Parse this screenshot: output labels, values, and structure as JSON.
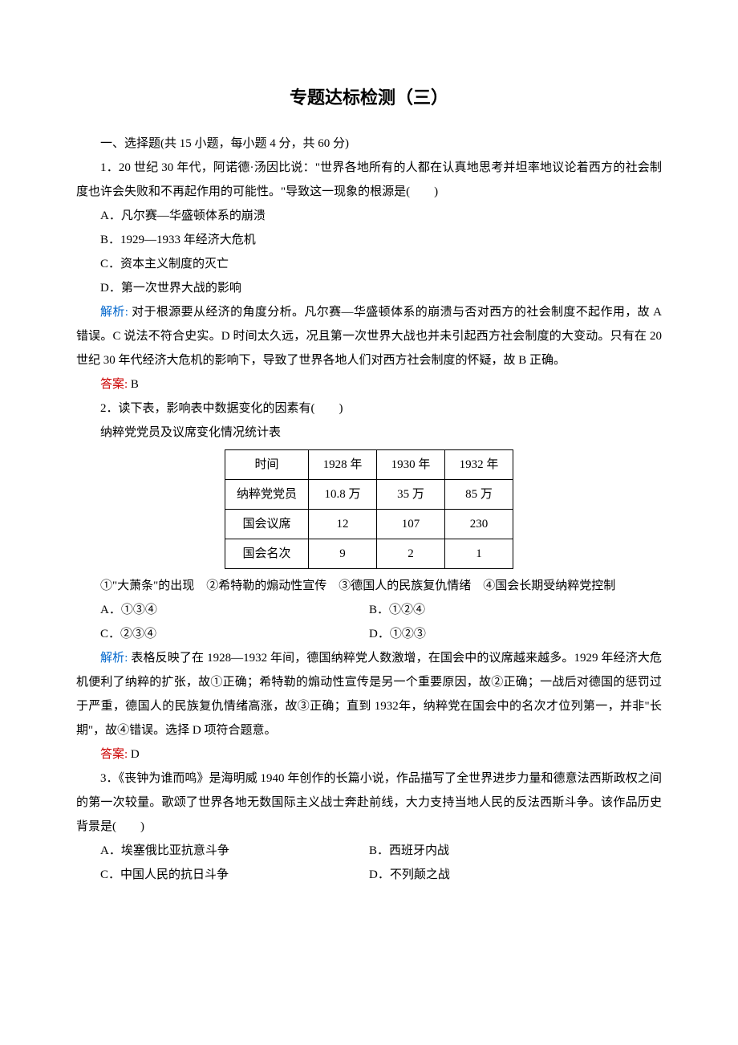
{
  "title": "专题达标检测（三）",
  "section_header": "一、选择题(共 15 小题，每小题 4 分，共 60 分)",
  "q1": {
    "stem": "1．20 世纪 30 年代，阿诺德·汤因比说：\"世界各地所有的人都在认真地思考并坦率地议论着西方的社会制度也许会失败和不再起作用的可能性。\"导致这一现象的根源是(　　)",
    "options": {
      "A": "A．凡尔赛—华盛顿体系的崩溃",
      "B": "B．1929—1933 年经济大危机",
      "C": "C．资本主义制度的灭亡",
      "D": "D．第一次世界大战的影响"
    },
    "analysis_label": "解析:",
    "analysis": " 对于根源要从经济的角度分析。凡尔赛—华盛顿体系的崩溃与否对西方的社会制度不起作用，故 A 错误。C 说法不符合史实。D 时间太久远，况且第一次世界大战也并未引起西方社会制度的大变动。只有在 20 世纪 30 年代经济大危机的影响下，导致了世界各地人们对西方社会制度的怀疑，故 B 正确。",
    "answer_label": "答案:",
    "answer_value": " B"
  },
  "q2": {
    "stem": "2．读下表，影响表中数据变化的因素有(　　)",
    "subtitle": "纳粹党党员及议席变化情况统计表",
    "table": {
      "header": [
        "时间",
        "1928 年",
        "1930 年",
        "1932 年"
      ],
      "rows": [
        [
          "纳粹党党员",
          "10.8 万",
          "35 万",
          "85 万"
        ],
        [
          "国会议席",
          "12",
          "107",
          "230"
        ],
        [
          "国会名次",
          "9",
          "2",
          "1"
        ]
      ]
    },
    "choices_line": "①\"大萧条\"的出现　②希特勒的煽动性宣传　③德国人的民族复仇情绪　④国会长期受纳粹党控制",
    "options": {
      "A": "A．①③④",
      "B": "B．①②④",
      "C": "C．②③④",
      "D": "D．①②③"
    },
    "analysis_label": "解析:",
    "analysis": " 表格反映了在 1928—1932 年间，德国纳粹党人数激增，在国会中的议席越来越多。1929 年经济大危机便利了纳粹的扩张，故①正确；希特勒的煽动性宣传是另一个重要原因，故②正确；一战后对德国的惩罚过于严重，德国人的民族复仇情绪高涨，故③正确；直到 1932年，纳粹党在国会中的名次才位列第一，并非\"长期\"，故④错误。选择 D 项符合题意。",
    "answer_label": "答案:",
    "answer_value": " D"
  },
  "q3": {
    "stem": "3．《丧钟为谁而鸣》是海明威 1940 年创作的长篇小说，作品描写了全世界进步力量和德意法西斯政权之间的第一次较量。歌颂了世界各地无数国际主义战士奔赴前线，大力支持当地人民的反法西斯斗争。该作品历史背景是(　　)",
    "options": {
      "A": "A．埃塞俄比亚抗意斗争",
      "B": "B．西班牙内战",
      "C": "C．中国人民的抗日斗争",
      "D": "D．不列颠之战"
    }
  }
}
